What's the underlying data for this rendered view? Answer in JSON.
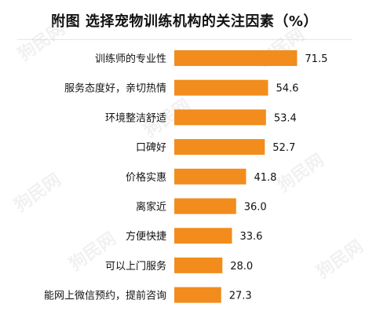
{
  "chart_data": {
    "type": "bar",
    "orientation": "horizontal",
    "title": "附图  选择宠物训练机构的关注因素（%）",
    "categories": [
      "训练师的专业性",
      "服务态度好，亲切热情",
      "环境整洁舒适",
      "口碑好",
      "价格实惠",
      "离家近",
      "方便快捷",
      "可以上门服务",
      "能网上微信预约，提前咨询"
    ],
    "values": [
      71.5,
      54.6,
      53.4,
      52.7,
      41.8,
      36.0,
      33.6,
      28.0,
      27.3
    ],
    "value_labels": [
      "71.5",
      "54.6",
      "53.4",
      "52.7",
      "41.8",
      "36.0",
      "33.6",
      "28.0",
      "27.3"
    ],
    "xlim": [
      0,
      80
    ],
    "grid": false,
    "legend": "none",
    "bar_color": "#f28c1c"
  },
  "watermark": {
    "text": "狗民网"
  }
}
